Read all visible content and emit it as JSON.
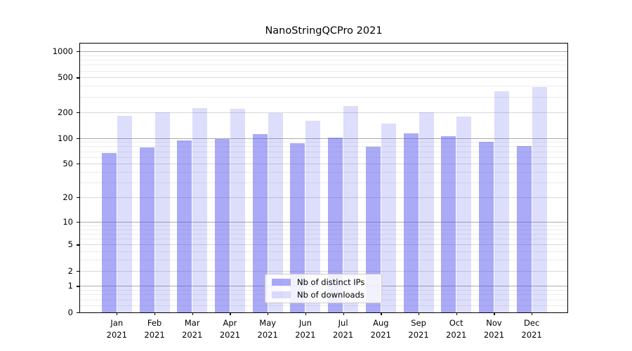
{
  "figure": {
    "title": "NanoStringQCPro 2021"
  },
  "chart_data": {
    "type": "bar",
    "title": "NanoStringQCPro 2021",
    "categories": [
      {
        "month": "Jan",
        "year": "2021"
      },
      {
        "month": "Feb",
        "year": "2021"
      },
      {
        "month": "Mar",
        "year": "2021"
      },
      {
        "month": "Apr",
        "year": "2021"
      },
      {
        "month": "May",
        "year": "2021"
      },
      {
        "month": "Jun",
        "year": "2021"
      },
      {
        "month": "Jul",
        "year": "2021"
      },
      {
        "month": "Aug",
        "year": "2021"
      },
      {
        "month": "Sep",
        "year": "2021"
      },
      {
        "month": "Oct",
        "year": "2021"
      },
      {
        "month": "Nov",
        "year": "2021"
      },
      {
        "month": "Dec",
        "year": "2021"
      }
    ],
    "series": [
      {
        "name": "Nb of distinct IPs",
        "color": "rgba(85,85,240,0.5)",
        "values": [
          67,
          77,
          94,
          98,
          111,
          87,
          101,
          79,
          113,
          104,
          91,
          80
        ]
      },
      {
        "name": "Nb of downloads",
        "color": "rgba(85,85,240,0.2)",
        "values": [
          181,
          198,
          223,
          218,
          195,
          158,
          235,
          148,
          199,
          176,
          350,
          387
        ]
      }
    ],
    "yscale": "log1p",
    "ylim": [
      0,
      1100
    ],
    "yticks": [
      1000,
      500,
      200,
      100,
      50,
      20,
      10,
      5,
      2,
      1,
      0
    ],
    "ytick_major_values": [
      1,
      10,
      100,
      1000
    ],
    "ytick_mid_values": [
      2,
      5,
      20,
      50,
      200,
      500
    ],
    "yminor_values": [
      0.2,
      0.4,
      0.6,
      0.8,
      3,
      4,
      6,
      7,
      8,
      9,
      30,
      40,
      60,
      70,
      80,
      90,
      300,
      400,
      600,
      700,
      800,
      900
    ],
    "grid": true,
    "legend_position": "lower center",
    "xlabel": "",
    "ylabel": ""
  },
  "style_colors": {
    "grid_major": "#ababab",
    "grid_mid": "#d9d9d9",
    "grid_minor": "#ececec",
    "axis": "#000000",
    "background": "#ffffff"
  }
}
